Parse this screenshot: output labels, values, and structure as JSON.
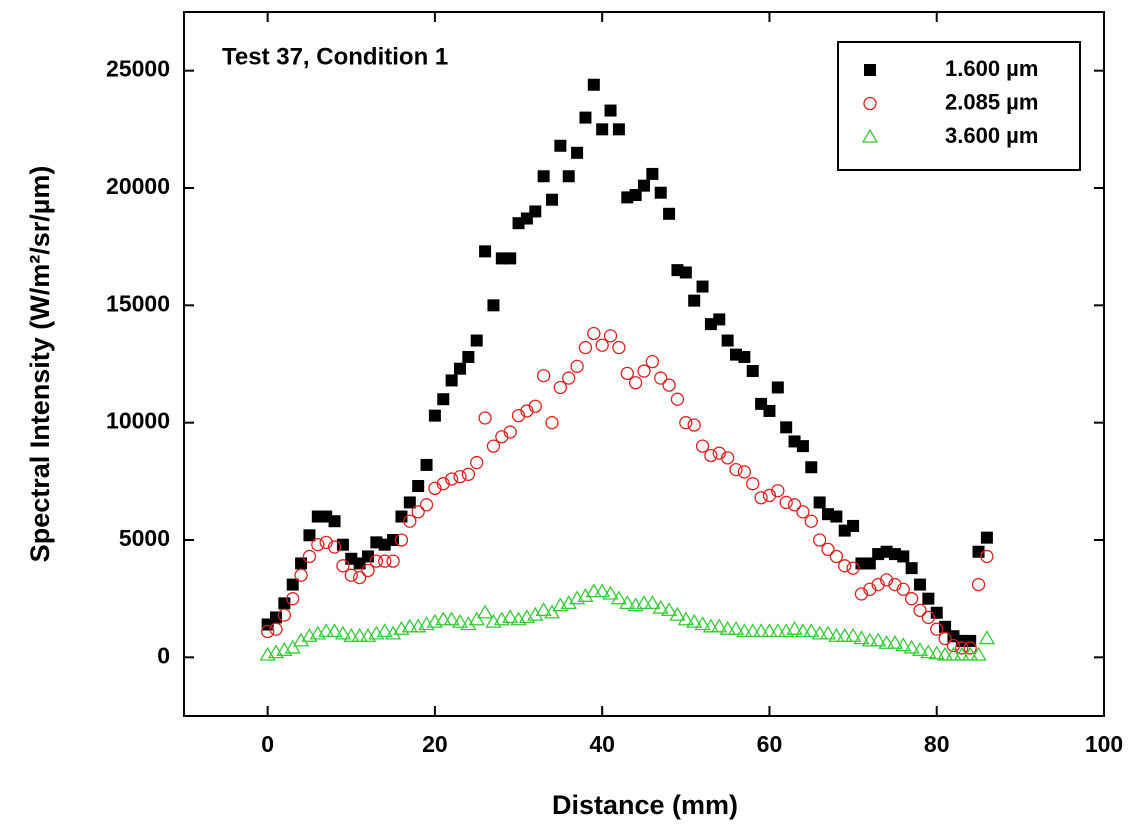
{
  "chart_data": {
    "type": "scatter",
    "annotation": "Test 37, Condition 1",
    "x_label": "Distance (mm)",
    "y_label": "Spectral Intensity (W/m²/sr/µm)",
    "xlim": [
      -10,
      100
    ],
    "ylim": [
      -2500,
      27500
    ],
    "xticks": [
      0,
      20,
      40,
      60,
      80,
      100
    ],
    "yticks": [
      0,
      5000,
      10000,
      15000,
      20000,
      25000
    ],
    "legend": "upper right",
    "x": [
      0,
      1,
      2,
      3,
      4,
      5,
      6,
      7,
      8,
      9,
      10,
      11,
      12,
      13,
      14,
      15,
      16,
      17,
      18,
      19,
      20,
      21,
      22,
      23,
      24,
      25,
      26,
      27,
      28,
      29,
      30,
      31,
      32,
      33,
      34,
      35,
      36,
      37,
      38,
      39,
      40,
      41,
      42,
      43,
      44,
      45,
      46,
      47,
      48,
      49,
      50,
      51,
      52,
      53,
      54,
      55,
      56,
      57,
      58,
      59,
      60,
      61,
      62,
      63,
      64,
      65,
      66,
      67,
      68,
      69,
      70,
      71,
      72,
      73,
      74,
      75,
      76,
      77,
      78,
      79,
      80,
      81,
      82,
      83,
      84,
      85,
      86
    ],
    "series": [
      {
        "name": "1.600 µm",
        "color": "#000000",
        "marker": "square",
        "values": [
          1400,
          1700,
          2300,
          3100,
          4000,
          5200,
          6000,
          6000,
          5800,
          4800,
          4200,
          4000,
          4300,
          4900,
          4800,
          5000,
          6000,
          6600,
          7300,
          8200,
          10300,
          11000,
          11800,
          12300,
          12800,
          13500,
          17300,
          15000,
          17000,
          17000,
          18500,
          18700,
          19000,
          20500,
          19500,
          21800,
          20500,
          21500,
          23000,
          24400,
          22500,
          23300,
          22500,
          19600,
          19700,
          20100,
          20600,
          19800,
          18900,
          16500,
          16400,
          15200,
          15800,
          14200,
          14400,
          13500,
          12900,
          12800,
          12200,
          10800,
          10500,
          11500,
          9800,
          9200,
          9000,
          8100,
          6600,
          6100,
          6000,
          5400,
          5600,
          4000,
          4000,
          4400,
          4500,
          4400,
          4300,
          3800,
          3100,
          2500,
          1900,
          1300,
          900,
          700,
          700,
          4500,
          5100
        ]
      },
      {
        "name": "2.085 µm",
        "color": "#e02020",
        "marker": "circle",
        "values": [
          1100,
          1200,
          1800,
          2500,
          3500,
          4300,
          4800,
          4900,
          4700,
          3900,
          3500,
          3400,
          3700,
          4100,
          4100,
          4100,
          5000,
          5800,
          6200,
          6500,
          7200,
          7400,
          7600,
          7700,
          7800,
          8300,
          10200,
          9000,
          9400,
          9600,
          10300,
          10500,
          10700,
          12000,
          10000,
          11500,
          11900,
          12400,
          13200,
          13800,
          13300,
          13700,
          13200,
          12100,
          11700,
          12200,
          12600,
          11900,
          11600,
          11000,
          10000,
          9900,
          9000,
          8600,
          8700,
          8500,
          8000,
          7900,
          7400,
          6800,
          6900,
          7100,
          6600,
          6500,
          6200,
          5800,
          5000,
          4600,
          4300,
          3900,
          3800,
          2700,
          2900,
          3100,
          3300,
          3100,
          2900,
          2500,
          2000,
          1700,
          1200,
          800,
          500,
          400,
          400,
          3100,
          4300
        ]
      },
      {
        "name": "3.600 µm",
        "color": "#33cc33",
        "marker": "triangle",
        "values": [
          100,
          200,
          300,
          400,
          700,
          900,
          1000,
          1100,
          1100,
          1000,
          900,
          900,
          900,
          1000,
          1100,
          1000,
          1200,
          1300,
          1300,
          1400,
          1500,
          1600,
          1600,
          1500,
          1400,
          1600,
          1900,
          1500,
          1600,
          1700,
          1600,
          1700,
          1800,
          2000,
          1900,
          2200,
          2300,
          2500,
          2600,
          2800,
          2800,
          2700,
          2500,
          2300,
          2200,
          2300,
          2300,
          2100,
          2000,
          1800,
          1600,
          1500,
          1400,
          1300,
          1300,
          1200,
          1200,
          1100,
          1100,
          1100,
          1100,
          1100,
          1100,
          1200,
          1100,
          1100,
          1000,
          1000,
          900,
          900,
          900,
          800,
          700,
          700,
          600,
          600,
          500,
          400,
          300,
          200,
          150,
          100,
          100,
          100,
          100,
          100,
          800
        ]
      }
    ]
  }
}
